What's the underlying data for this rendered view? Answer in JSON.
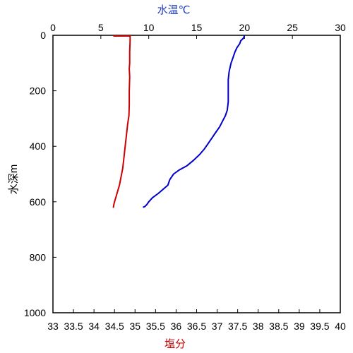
{
  "chart_data": {
    "type": "line",
    "title": "",
    "temperature_axis": {
      "label": "水温℃",
      "range": [
        0,
        30
      ],
      "ticks": [
        0,
        5,
        10,
        15,
        20,
        25,
        30
      ],
      "position": "top",
      "color": "#1f3fbf"
    },
    "salinity_axis": {
      "label": "塩分",
      "range": [
        33,
        40
      ],
      "ticks": [
        "33",
        "33.5",
        "34",
        "34.5",
        "35",
        "35.5",
        "36",
        "36.5",
        "37",
        "37.5",
        "38",
        "38.5",
        "39",
        "39.5",
        "40"
      ],
      "position": "bottom",
      "color": "#cc0000"
    },
    "depth_axis": {
      "label": "水深m",
      "range": [
        0,
        1000
      ],
      "ticks": [
        0,
        200,
        400,
        600,
        800,
        1000
      ],
      "inverted": true
    },
    "grid": false,
    "series": [
      {
        "color": "#0000cc",
        "axis": "temperature",
        "points": [
          [
            20.0,
            0
          ],
          [
            19.9,
            10
          ],
          [
            19.6,
            20
          ],
          [
            19.5,
            30
          ],
          [
            19.2,
            45
          ],
          [
            19.0,
            60
          ],
          [
            18.8,
            80
          ],
          [
            18.6,
            100
          ],
          [
            18.4,
            130
          ],
          [
            18.3,
            160
          ],
          [
            18.3,
            200
          ],
          [
            18.3,
            240
          ],
          [
            18.2,
            270
          ],
          [
            18.0,
            290
          ],
          [
            17.7,
            310
          ],
          [
            17.4,
            330
          ],
          [
            17.0,
            350
          ],
          [
            16.6,
            370
          ],
          [
            16.2,
            390
          ],
          [
            15.8,
            410
          ],
          [
            15.3,
            430
          ],
          [
            14.7,
            450
          ],
          [
            14.0,
            470
          ],
          [
            13.2,
            485
          ],
          [
            12.6,
            500
          ],
          [
            12.2,
            520
          ],
          [
            12.0,
            540
          ],
          [
            11.5,
            555
          ],
          [
            11.0,
            570
          ],
          [
            10.4,
            585
          ],
          [
            10.0,
            600
          ],
          [
            9.8,
            610
          ],
          [
            9.6,
            617
          ],
          [
            9.4,
            620
          ]
        ]
      },
      {
        "color": "#cc0000",
        "axis": "salinity",
        "points": [
          [
            34.88,
            0
          ],
          [
            34.88,
            20
          ],
          [
            34.87,
            60
          ],
          [
            34.87,
            100
          ],
          [
            34.86,
            120
          ],
          [
            34.87,
            150
          ],
          [
            34.86,
            200
          ],
          [
            34.86,
            250
          ],
          [
            34.85,
            290
          ],
          [
            34.82,
            320
          ],
          [
            34.79,
            360
          ],
          [
            34.76,
            400
          ],
          [
            34.73,
            440
          ],
          [
            34.7,
            480
          ],
          [
            34.66,
            510
          ],
          [
            34.62,
            540
          ],
          [
            34.57,
            565
          ],
          [
            34.53,
            585
          ],
          [
            34.5,
            600
          ],
          [
            34.48,
            612
          ],
          [
            34.47,
            622
          ]
        ],
        "surface_segment": [
          [
            34.47,
            0
          ],
          [
            34.88,
            0
          ]
        ]
      }
    ]
  }
}
